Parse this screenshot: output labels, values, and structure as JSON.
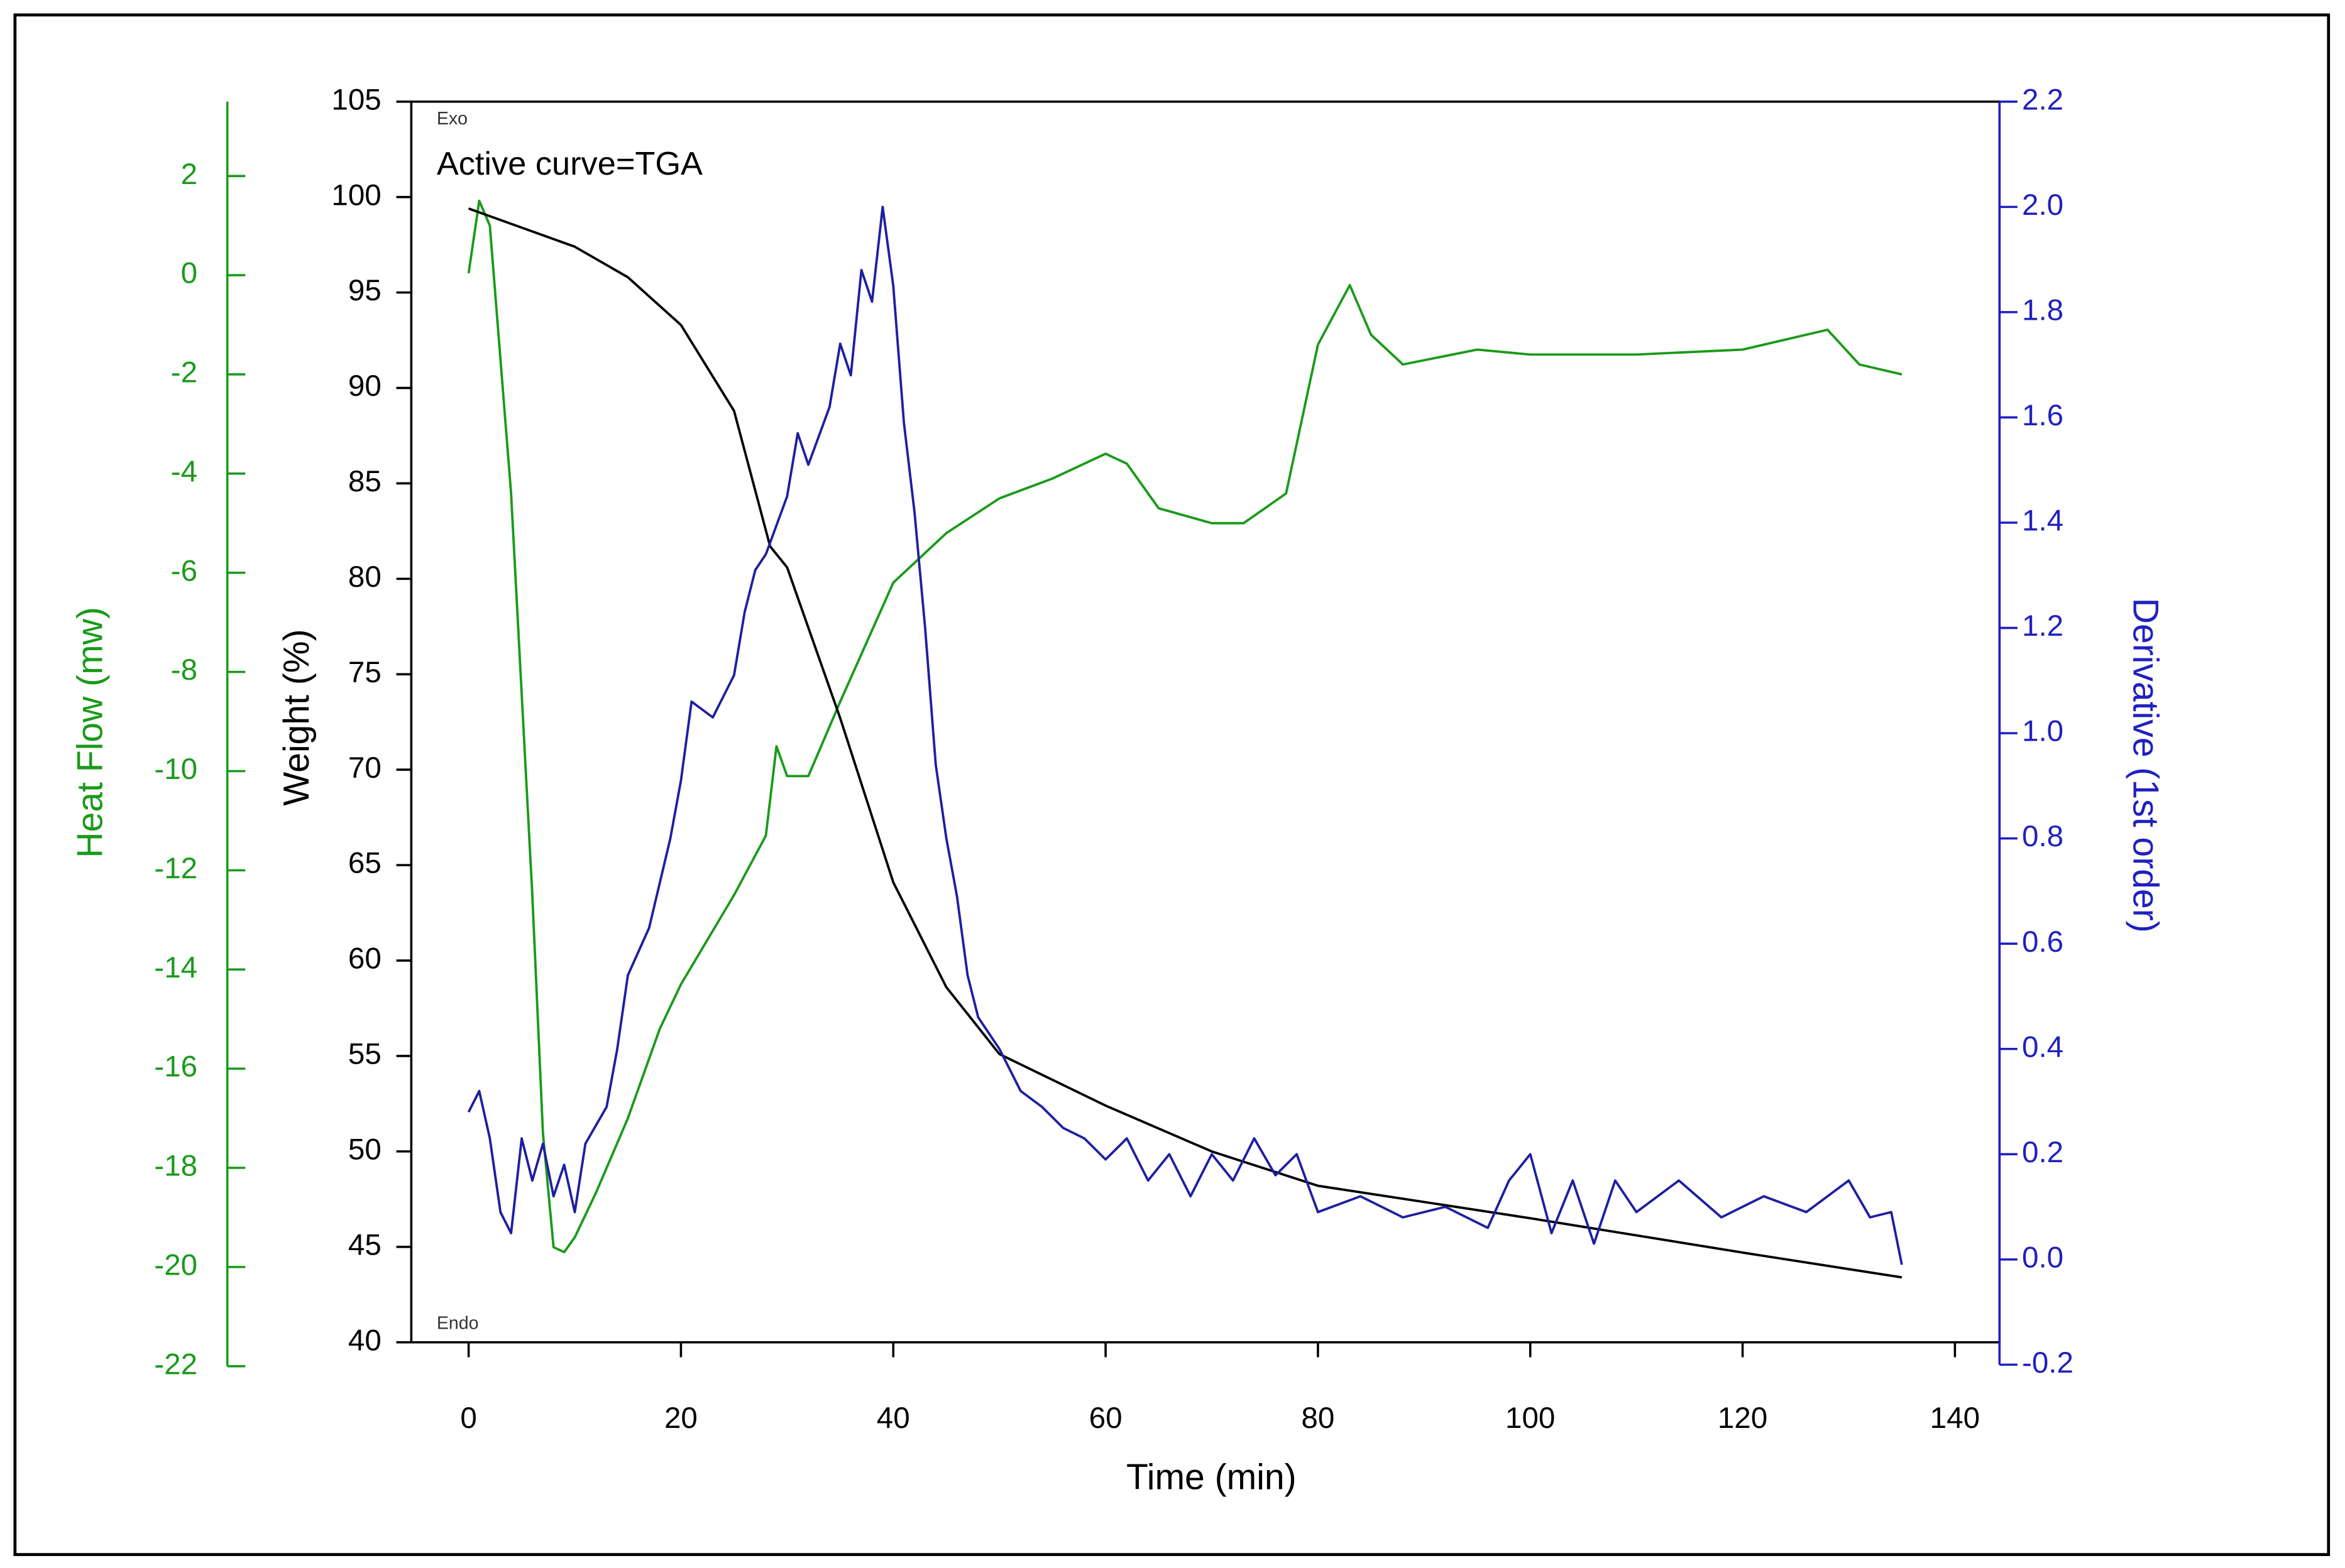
{
  "chart_data": {
    "type": "line",
    "annotations": {
      "top": "Exo",
      "bottom": "Endo",
      "active": "Active curve=TGA"
    },
    "xlabel": "Time (min)",
    "ylabel": "Weight (%)",
    "y2label": "Derivative (1st order)",
    "y3label": "Heat Flow (mw)",
    "xlim": [
      -5.4,
      144.2
    ],
    "xticks": [
      0,
      20,
      40,
      60,
      80,
      100,
      120,
      140
    ],
    "ylim": [
      40,
      105
    ],
    "yticks": [
      40,
      45,
      50,
      55,
      60,
      65,
      70,
      75,
      80,
      85,
      90,
      95,
      100,
      105
    ],
    "y2lim": [
      -0.2,
      2.2
    ],
    "y2ticks": [
      -0.2,
      {
        "value": 0,
        "label": "0.0"
      },
      0.2,
      0.4,
      0.6,
      0.8,
      {
        "value": 1,
        "label": "1.0"
      },
      1.2,
      1.4,
      1.6,
      1.8,
      {
        "value": 2,
        "label": "2.0"
      },
      2.2
    ],
    "y3lim": [
      -22,
      3.5
    ],
    "y3ticks": [
      -22,
      -20,
      -18,
      -16,
      -14,
      -12,
      -10,
      -8,
      -6,
      -4,
      -2,
      0,
      2
    ],
    "grid": false,
    "series": [
      {
        "color": "#1a9a1a",
        "axis": "y3",
        "x": [
          0,
          1,
          2,
          4,
          6,
          7,
          8,
          9,
          10,
          12,
          15,
          18,
          20,
          25,
          28,
          29,
          30,
          32,
          35,
          40,
          45,
          50,
          55,
          60,
          62,
          65,
          70,
          73,
          77,
          80,
          83,
          85,
          88,
          95,
          100,
          110,
          120,
          128,
          131,
          135
        ],
        "values": [
          0.04,
          1.5,
          1,
          -4.4,
          -12.5,
          -17.3,
          -19.6,
          -19.7,
          -19.4,
          -18.5,
          -17,
          -15.2,
          -14.3,
          -12.5,
          -11.3,
          -9.5,
          -10.1,
          -10.1,
          -8.6,
          -6.2,
          -5.2,
          -4.5,
          -4.1,
          -3.6,
          -3.8,
          -4.7,
          -5,
          -5,
          -4.4,
          -1.4,
          -0.2,
          -1.2,
          -1.8,
          -1.5,
          -1.6,
          -1.6,
          -1.5,
          -1.1,
          -1.8,
          -2
        ]
      },
      {
        "color": "#000000",
        "axis": "y",
        "x": [
          0,
          10,
          15,
          20,
          25,
          28.4,
          30,
          35,
          40,
          45,
          50,
          60,
          70,
          80,
          100,
          120,
          135
        ],
        "values": [
          99.4,
          97.4,
          95.8,
          93.3,
          88.8,
          81.7,
          80.6,
          72.7,
          64.1,
          58.6,
          55.1,
          52.4,
          50,
          48.2,
          46.5,
          44.7,
          43.4
        ]
      },
      {
        "color": "#1f1fa0",
        "axis": "y2",
        "x": [
          0,
          1,
          2,
          3,
          4,
          5,
          6,
          7,
          8,
          9,
          10,
          11,
          13,
          14,
          15,
          17,
          19,
          20,
          21,
          23,
          25,
          26,
          27,
          28,
          30,
          31,
          32,
          34,
          35,
          36,
          37,
          38,
          39,
          40,
          41,
          42,
          43,
          44,
          45,
          46,
          47,
          48,
          50,
          52,
          54,
          56,
          58,
          60,
          62,
          64,
          66,
          68,
          70,
          72,
          74,
          76,
          78,
          80,
          84,
          88,
          92,
          96,
          98,
          100,
          102,
          104,
          106,
          108,
          110,
          114,
          118,
          122,
          126,
          130,
          132,
          134,
          135
        ],
        "values": [
          0.28,
          0.32,
          0.23,
          0.09,
          0.05,
          0.23,
          0.15,
          0.22,
          0.12,
          0.18,
          0.09,
          0.22,
          0.29,
          0.4,
          0.54,
          0.63,
          0.8,
          0.91,
          1.06,
          1.03,
          1.11,
          1.23,
          1.31,
          1.34,
          1.45,
          1.57,
          1.51,
          1.62,
          1.74,
          1.68,
          1.88,
          1.82,
          2.0,
          1.85,
          1.59,
          1.42,
          1.2,
          0.94,
          0.8,
          0.69,
          0.54,
          0.46,
          0.4,
          0.32,
          0.29,
          0.25,
          0.23,
          0.19,
          0.23,
          0.15,
          0.2,
          0.12,
          0.2,
          0.15,
          0.23,
          0.16,
          0.2,
          0.09,
          0.12,
          0.08,
          0.1,
          0.06,
          0.15,
          0.2,
          0.05,
          0.15,
          0.03,
          0.15,
          0.09,
          0.15,
          0.08,
          0.12,
          0.09,
          0.15,
          0.08,
          0.09,
          -0.01
        ]
      }
    ]
  }
}
